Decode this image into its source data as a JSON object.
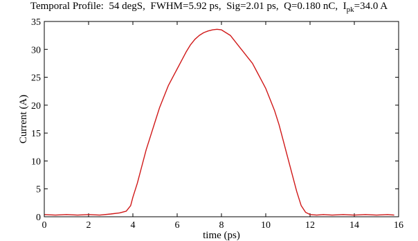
{
  "chart_data": {
    "type": "line",
    "title_parts": {
      "prefix": "Temporal Profile:  54 degS,  FWHM=5.92 ps,  Sig=2.01 ps,  Q=0.180 nC,  I",
      "sub": "pk",
      "suffix": "=34.0 A"
    },
    "xlabel": "time (ps)",
    "ylabel": "Current (A)",
    "xlim": [
      0,
      16
    ],
    "ylim": [
      0,
      35
    ],
    "xticks": [
      "0",
      "2",
      "4",
      "6",
      "8",
      "10",
      "12",
      "14",
      "16"
    ],
    "yticks": [
      "0",
      "5",
      "10",
      "15",
      "20",
      "25",
      "30",
      "35"
    ],
    "grid": false,
    "series": [
      {
        "color": "#d01818",
        "x": [
          0.0,
          0.5,
          1.0,
          1.5,
          2.0,
          2.5,
          3.0,
          3.4,
          3.7,
          3.9,
          4.0,
          4.2,
          4.4,
          4.6,
          4.8,
          5.0,
          5.2,
          5.4,
          5.6,
          5.8,
          6.0,
          6.2,
          6.4,
          6.6,
          6.8,
          7.0,
          7.2,
          7.4,
          7.6,
          7.8,
          8.0,
          8.2,
          8.4,
          8.6,
          8.8,
          9.0,
          9.2,
          9.4,
          9.6,
          9.8,
          10.0,
          10.2,
          10.4,
          10.6,
          10.8,
          11.0,
          11.2,
          11.4,
          11.6,
          11.8,
          12.0,
          12.3,
          12.6,
          13.0,
          13.5,
          14.0,
          14.5,
          15.0,
          15.5,
          15.8
        ],
        "y": [
          0.4,
          0.3,
          0.4,
          0.3,
          0.4,
          0.3,
          0.5,
          0.7,
          1.0,
          2.0,
          3.5,
          6.0,
          9.0,
          12.0,
          14.5,
          17.0,
          19.5,
          21.5,
          23.5,
          25.0,
          26.5,
          28.0,
          29.5,
          30.8,
          31.8,
          32.5,
          33.0,
          33.3,
          33.5,
          33.6,
          33.5,
          33.0,
          32.5,
          31.5,
          30.5,
          29.5,
          28.5,
          27.5,
          26.0,
          24.5,
          23.0,
          21.0,
          19.0,
          16.5,
          13.5,
          10.5,
          7.5,
          4.5,
          2.0,
          0.8,
          0.4,
          0.3,
          0.4,
          0.3,
          0.4,
          0.3,
          0.4,
          0.3,
          0.4,
          0.3
        ]
      }
    ]
  }
}
